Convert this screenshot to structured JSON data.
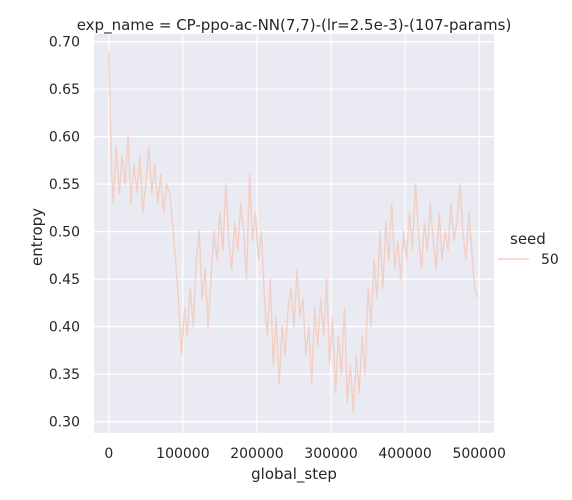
{
  "chart_data": {
    "type": "line",
    "title": "exp_name = CP-ppo-ac-NN(7,7)-(lr=2.5e-3)-(107-params)",
    "xlabel": "global_step",
    "ylabel": "entropy",
    "xlim": [
      -20000,
      520000
    ],
    "ylim": [
      0.288,
      0.708
    ],
    "x_ticks": [
      0,
      100000,
      200000,
      300000,
      400000,
      500000
    ],
    "x_tick_labels": [
      "0",
      "100000",
      "200000",
      "300000",
      "400000",
      "500000"
    ],
    "y_ticks": [
      0.3,
      0.35,
      0.4,
      0.45,
      0.5,
      0.55,
      0.6,
      0.65,
      0.7
    ],
    "y_tick_labels": [
      "0.30",
      "0.35",
      "0.40",
      "0.45",
      "0.50",
      "0.55",
      "0.60",
      "0.65",
      "0.70"
    ],
    "grid": true,
    "background_color": "#eaeaf2",
    "legend": {
      "title": "seed",
      "position": "right",
      "entries": [
        {
          "label": "50",
          "color": "#f2cfc4"
        }
      ]
    },
    "series": [
      {
        "name": "50",
        "color": "#f2cfc4",
        "x": [
          0,
          2000,
          4000,
          6000,
          10000,
          14000,
          18000,
          22000,
          26000,
          30000,
          34000,
          38000,
          42000,
          46000,
          50000,
          54000,
          58000,
          62000,
          66000,
          70000,
          74000,
          78000,
          82000,
          86000,
          90000,
          94000,
          98000,
          102000,
          106000,
          110000,
          114000,
          118000,
          122000,
          126000,
          130000,
          134000,
          138000,
          142000,
          146000,
          150000,
          154000,
          158000,
          162000,
          166000,
          170000,
          174000,
          178000,
          182000,
          186000,
          190000,
          194000,
          198000,
          202000,
          206000,
          210000,
          214000,
          218000,
          222000,
          226000,
          230000,
          234000,
          238000,
          242000,
          246000,
          250000,
          254000,
          258000,
          262000,
          266000,
          270000,
          274000,
          278000,
          282000,
          286000,
          290000,
          294000,
          298000,
          302000,
          306000,
          310000,
          314000,
          318000,
          322000,
          326000,
          330000,
          334000,
          338000,
          342000,
          346000,
          350000,
          354000,
          358000,
          362000,
          366000,
          370000,
          374000,
          378000,
          382000,
          386000,
          390000,
          394000,
          398000,
          402000,
          406000,
          410000,
          414000,
          418000,
          422000,
          426000,
          430000,
          434000,
          438000,
          442000,
          446000,
          450000,
          454000,
          458000,
          462000,
          466000,
          470000,
          474000,
          478000,
          482000,
          486000,
          490000,
          494000,
          498000
        ],
        "y": [
          0.688,
          0.62,
          0.56,
          0.53,
          0.59,
          0.54,
          0.58,
          0.55,
          0.6,
          0.53,
          0.57,
          0.54,
          0.58,
          0.52,
          0.55,
          0.59,
          0.54,
          0.57,
          0.53,
          0.56,
          0.52,
          0.55,
          0.54,
          0.51,
          0.47,
          0.43,
          0.37,
          0.42,
          0.39,
          0.44,
          0.4,
          0.47,
          0.5,
          0.43,
          0.46,
          0.4,
          0.45,
          0.5,
          0.47,
          0.52,
          0.48,
          0.55,
          0.49,
          0.46,
          0.51,
          0.48,
          0.53,
          0.5,
          0.45,
          0.56,
          0.49,
          0.52,
          0.47,
          0.5,
          0.43,
          0.39,
          0.45,
          0.36,
          0.41,
          0.34,
          0.4,
          0.37,
          0.42,
          0.44,
          0.4,
          0.46,
          0.41,
          0.43,
          0.37,
          0.4,
          0.34,
          0.42,
          0.38,
          0.43,
          0.39,
          0.45,
          0.36,
          0.41,
          0.33,
          0.39,
          0.35,
          0.42,
          0.32,
          0.36,
          0.31,
          0.37,
          0.33,
          0.39,
          0.35,
          0.44,
          0.4,
          0.47,
          0.43,
          0.5,
          0.44,
          0.51,
          0.47,
          0.53,
          0.46,
          0.49,
          0.45,
          0.5,
          0.47,
          0.52,
          0.48,
          0.55,
          0.5,
          0.46,
          0.51,
          0.48,
          0.53,
          0.49,
          0.46,
          0.52,
          0.47,
          0.5,
          0.48,
          0.53,
          0.49,
          0.51,
          0.55,
          0.5,
          0.47,
          0.52,
          0.48,
          0.44,
          0.43
        ]
      }
    ]
  }
}
